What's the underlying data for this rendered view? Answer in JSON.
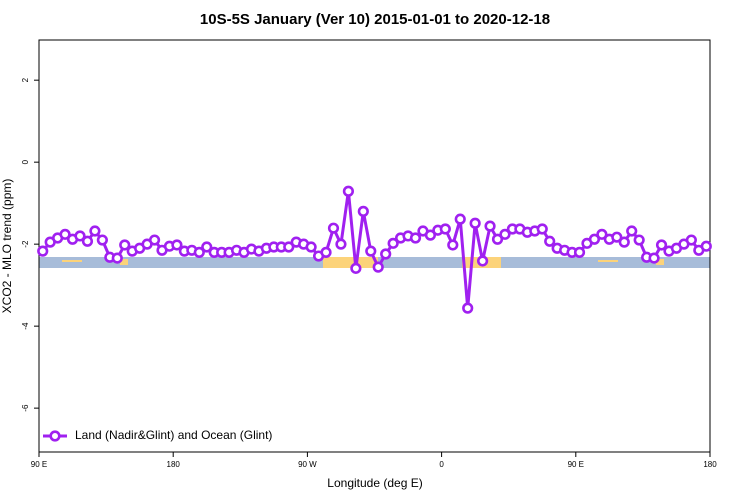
{
  "chart_data": {
    "type": "line",
    "title": "10S-5S January (Ver 10)   2015-01-01 to 2020-12-18",
    "xlabel": "Longitude (deg E)",
    "ylabel": "XCO2 - MLO trend (ppm)",
    "x": [
      92.5,
      97.5,
      102.5,
      107.5,
      112.5,
      117.5,
      122.5,
      127.5,
      132.5,
      137.5,
      142.5,
      147.5,
      152.5,
      157.5,
      162.5,
      167.5,
      172.5,
      177.5,
      182.5,
      187.5,
      192.5,
      197.5,
      202.5,
      207.5,
      212.5,
      217.5,
      222.5,
      227.5,
      232.5,
      237.5,
      242.5,
      247.5,
      252.5,
      257.5,
      262.5,
      267.5,
      272.5,
      277.5,
      282.5,
      287.5,
      292.5,
      297.5,
      302.5,
      307.5,
      312.5,
      317.5,
      322.5,
      327.5,
      332.5,
      337.5,
      342.5,
      347.5,
      352.5,
      357.5,
      362.5,
      367.5,
      372.5,
      377.5,
      382.5,
      387.5,
      392.5,
      397.5,
      402.5,
      407.5,
      412.5,
      417.5,
      422.5,
      427.5,
      432.5,
      437.5,
      442.5,
      447.5,
      452.5,
      457.5,
      462.5,
      467.5,
      472.5,
      477.5,
      482.5,
      487.5,
      492.5,
      497.5,
      502.5,
      507.5,
      512.5,
      517.5,
      522.5,
      527.5,
      532.5,
      537.5
    ],
    "series": [
      {
        "name": "Land (Nadir&Glint) and Ocean (Glint)",
        "color": "#a020f0",
        "values": [
          -2.17,
          -1.95,
          -1.85,
          -1.76,
          -1.88,
          -1.8,
          -1.93,
          -1.68,
          -1.9,
          -2.32,
          -2.34,
          -2.02,
          -2.17,
          -2.1,
          -2.0,
          -1.9,
          -2.15,
          -2.05,
          -2.02,
          -2.17,
          -2.15,
          -2.2,
          -2.07,
          -2.2,
          -2.2,
          -2.2,
          -2.15,
          -2.2,
          -2.12,
          -2.17,
          -2.1,
          -2.07,
          -2.07,
          -2.07,
          -1.95,
          -2.0,
          -2.07,
          -2.29,
          -2.2,
          -1.61,
          -2.0,
          -0.71,
          -2.59,
          -1.2,
          -2.17,
          -2.56,
          -2.24,
          -1.98,
          -1.85,
          -1.8,
          -1.85,
          -1.68,
          -1.78,
          -1.66,
          -1.63,
          -2.02,
          -1.39,
          -3.56,
          -1.49,
          -2.41,
          -1.56,
          -1.88,
          -1.76,
          -1.63,
          -1.63,
          -1.71,
          -1.68,
          -1.63,
          -1.93,
          -2.1,
          -2.15,
          -2.2,
          -2.2,
          -1.98,
          -1.88,
          -1.76,
          -1.88,
          -1.83,
          -1.95,
          -1.68,
          -1.9,
          -2.32,
          -2.34,
          -2.02,
          -2.17,
          -2.1,
          -2.0,
          -1.9,
          -2.15,
          -2.05
        ]
      }
    ],
    "xlim": [
      90,
      540
    ],
    "xticks": [
      {
        "value": 90,
        "label": "90 E"
      },
      180,
      {
        "value": 270,
        "label": "90 W"
      },
      {
        "value": 360,
        "label": "0"
      },
      {
        "value": 450,
        "label": "90 E"
      },
      {
        "value": 540,
        "label": "180"
      }
    ],
    "ylim": [
      -7.07,
      2.98
    ],
    "yticks": [
      2,
      0,
      -2,
      -4,
      -6
    ],
    "legend": "bottom-left"
  }
}
